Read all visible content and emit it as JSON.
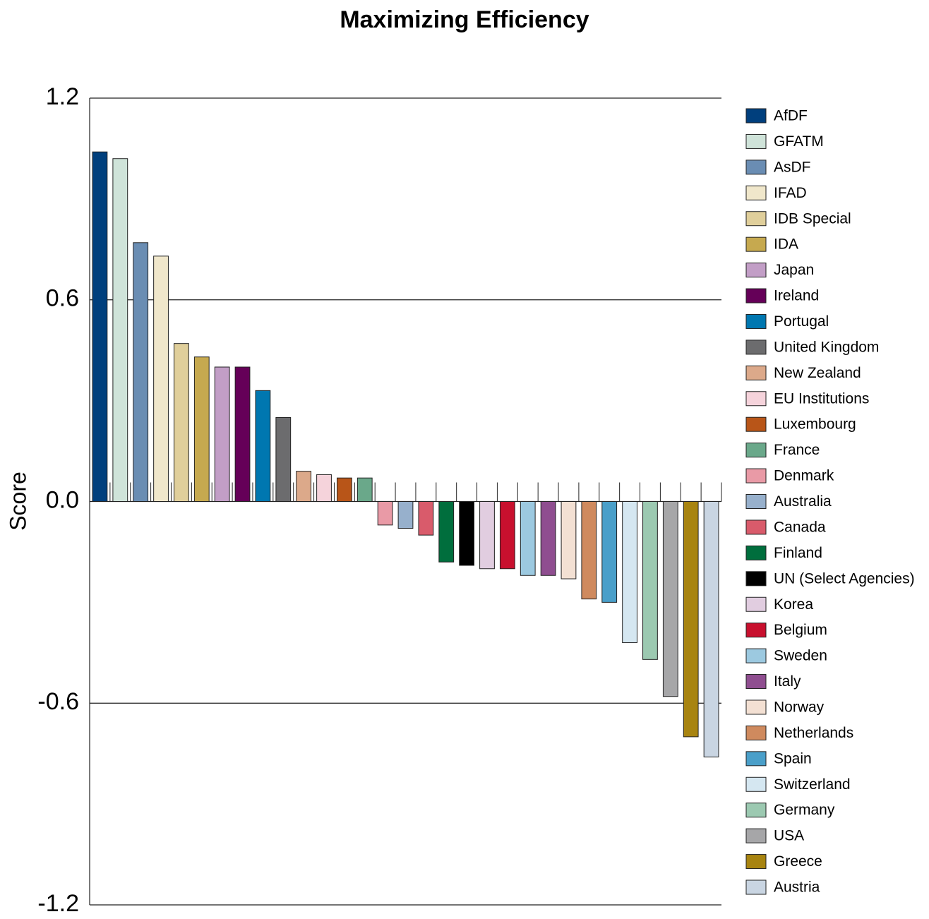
{
  "chart_data": {
    "type": "bar",
    "title": "Maximizing Efficiency",
    "y_label": "Score",
    "categories": [
      "AfDF",
      "GFATM",
      "AsDF",
      "IFAD",
      "IDB Special",
      "IDA",
      "Japan",
      "Ireland",
      "Portugal",
      "United Kingdom",
      "New Zealand",
      "EU Institutions",
      "Luxembourg",
      "France",
      "Denmark",
      "Australia",
      "Canada",
      "Finland",
      "UN (Select Agencies)",
      "Korea",
      "Belgium",
      "Sweden",
      "Italy",
      "Norway",
      "Netherlands",
      "Spain",
      "Switzerland",
      "Germany",
      "USA",
      "Greece",
      "Austria"
    ],
    "values": [
      1.04,
      1.02,
      0.77,
      0.73,
      0.47,
      0.43,
      0.4,
      0.4,
      0.33,
      0.25,
      0.09,
      0.08,
      0.07,
      0.07,
      -0.07,
      -0.08,
      -0.1,
      -0.18,
      -0.19,
      -0.2,
      -0.2,
      -0.22,
      -0.22,
      -0.23,
      -0.29,
      -0.3,
      -0.42,
      -0.47,
      -0.58,
      -0.7,
      -0.76
    ],
    "colors": [
      "#003f7d",
      "#cfe3d9",
      "#6a8db3",
      "#f0e7cb",
      "#e0cf9b",
      "#c6a94f",
      "#c29ec6",
      "#650058",
      "#0077b0",
      "#6c6c6e",
      "#dca98a",
      "#f5d3db",
      "#b85518",
      "#6aa88a",
      "#e99aa6",
      "#97b0cc",
      "#d95b6b",
      "#006e3d",
      "#000000",
      "#e1cde0",
      "#c8102e",
      "#9cc9e0",
      "#8f4e90",
      "#f3e0d3",
      "#cf8a5e",
      "#4a9fc9",
      "#d5e7f1",
      "#9cc9b1",
      "#a6a6a8",
      "#a88410",
      "#c9d5e2"
    ],
    "ylim": [
      -1.2,
      1.2
    ],
    "yticks": [
      {
        "value": -1.2,
        "label": "-1.2"
      },
      {
        "value": -0.6,
        "label": "-0.6"
      },
      {
        "value": 0,
        "label": "0.0"
      },
      {
        "value": 0.6,
        "label": "0.6"
      },
      {
        "value": 1.2,
        "label": "1.2"
      }
    ],
    "grid": true,
    "legend": "right"
  }
}
